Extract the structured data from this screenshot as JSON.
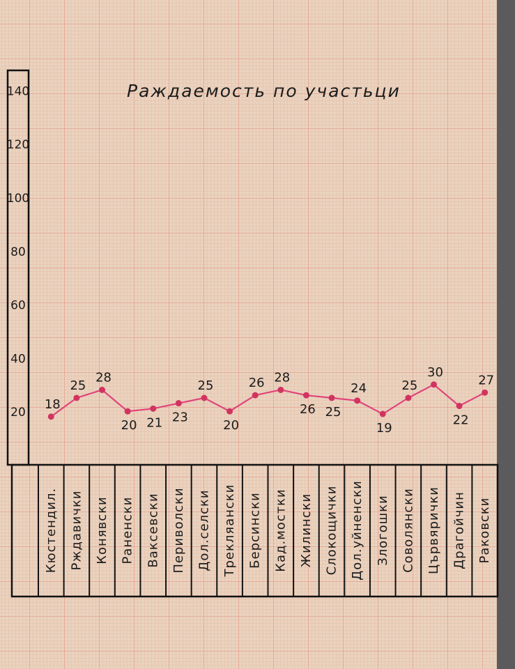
{
  "chart_data": {
    "type": "line",
    "title": "Раждаемость по участьци",
    "categories": [
      "Кюстендил.",
      "Рждавички",
      "Конявски",
      "Раненски",
      "Ваксевски",
      "Периволски",
      "Дол.селски",
      "Трекляански",
      "Берсински",
      "Кад.мостки",
      "Жилински",
      "Слокощички",
      "Дол.уйненски",
      "Злогошки",
      "Соволянски",
      "Цървярички",
      "Драгойчин",
      "Раковски"
    ],
    "series": [
      {
        "values": [
          18,
          25,
          28,
          20,
          21,
          23,
          25,
          20,
          26,
          28,
          26,
          25,
          24,
          19,
          25,
          30,
          22,
          27
        ]
      }
    ],
    "point_labels": [
      "18",
      "25",
      "28",
      "20",
      "21",
      "23",
      "25",
      "20",
      "26",
      "28",
      "26",
      "25",
      "24",
      "19",
      "25",
      "30",
      "22",
      "27"
    ],
    "y_ticks": [
      20,
      40,
      60,
      80,
      100,
      120,
      140
    ],
    "y_tick_labels": [
      "20",
      "40",
      "60",
      "80",
      "100",
      "120",
      "140"
    ],
    "ylim": [
      0,
      145
    ],
    "line_color": "#e0457a",
    "paper_color": "#e9d3bf",
    "grid_color": "#e28a78",
    "ink_color": "#1b1b1b"
  }
}
